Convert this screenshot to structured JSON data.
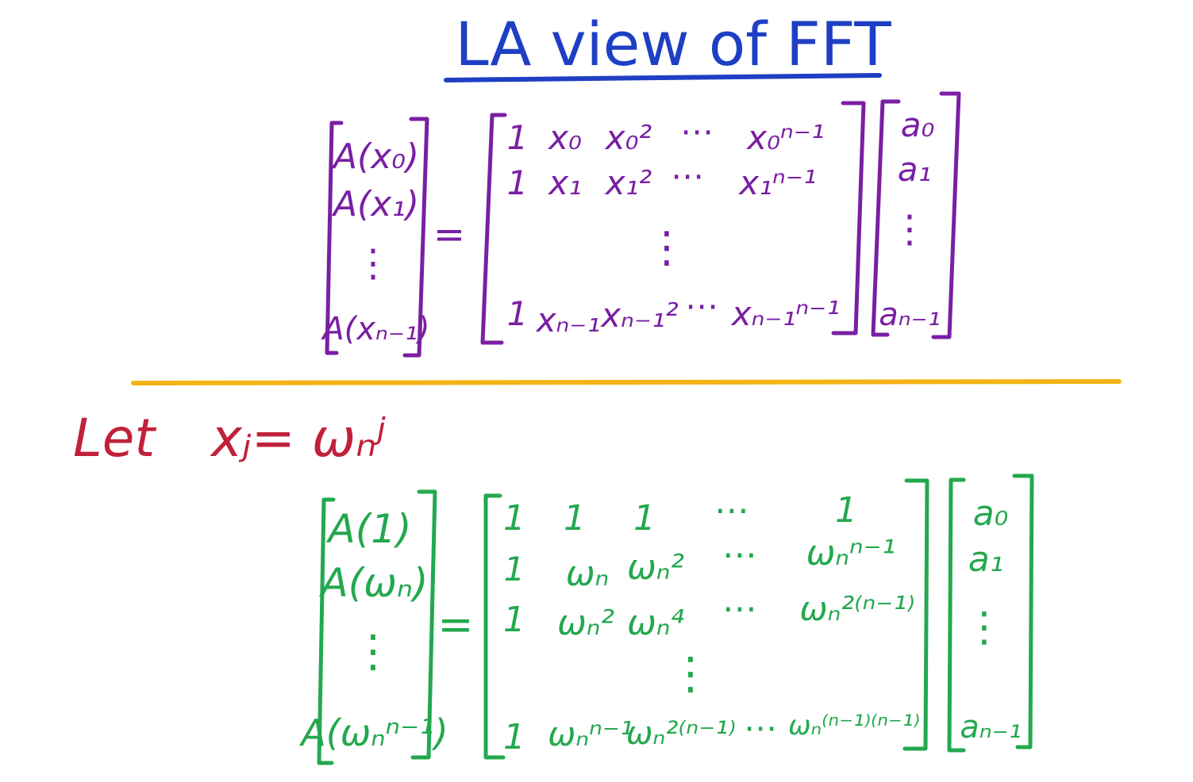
{
  "title": "LA view of FFT",
  "colors": {
    "title": "#1e3fc4",
    "general": "#7a1fa3",
    "specific": "#23a84e",
    "substitution": "#c0213a",
    "divider": "#f2b416"
  },
  "general_eq": {
    "lhs": [
      "A(x₀)",
      "A(x₁)",
      "⋮",
      "A(xₙ₋₁)"
    ],
    "equals": "=",
    "matrix": {
      "row0": [
        "1",
        "x₀",
        "x₀²",
        "⋯",
        "x₀ⁿ⁻¹"
      ],
      "row1": [
        "1",
        "x₁",
        "x₁²",
        "⋯",
        "x₁ⁿ⁻¹"
      ],
      "vdots": "⋮",
      "row_last": [
        "1",
        "xₙ₋₁",
        "xₙ₋₁²",
        "⋯",
        "xₙ₋₁ⁿ⁻¹"
      ]
    },
    "vector": [
      "a₀",
      "a₁",
      "⋮",
      "aₙ₋₁"
    ]
  },
  "substitution": {
    "label": "Let",
    "expr": "xⱼ= ωₙʲ"
  },
  "fft_eq": {
    "lhs": [
      "A(1)",
      "A(ωₙ)",
      "⋮",
      "A(ωₙⁿ⁻¹)"
    ],
    "equals": "=",
    "matrix": {
      "row0": [
        "1",
        "1",
        "1",
        "⋯",
        "1"
      ],
      "row1": [
        "1",
        "ωₙ",
        "ωₙ²",
        "⋯",
        "ωₙⁿ⁻¹"
      ],
      "row2": [
        "1",
        "ωₙ²",
        "ωₙ⁴",
        "⋯",
        "ωₙ²⁽ⁿ⁻¹⁾"
      ],
      "vdots": "⋮",
      "row_last": [
        "1",
        "ωₙⁿ⁻¹",
        "ωₙ²⁽ⁿ⁻¹⁾",
        "⋯",
        "ωₙ⁽ⁿ⁻¹⁾⁽ⁿ⁻¹⁾"
      ]
    },
    "vector": [
      "a₀",
      "a₁",
      "⋮",
      "aₙ₋₁"
    ]
  }
}
